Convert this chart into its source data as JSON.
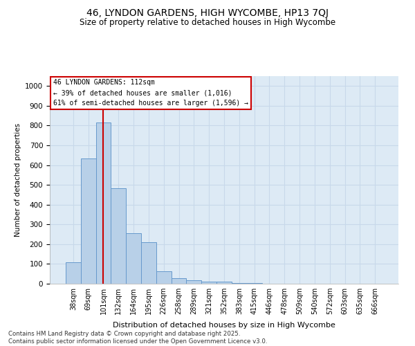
{
  "title1": "46, LYNDON GARDENS, HIGH WYCOMBE, HP13 7QJ",
  "title2": "Size of property relative to detached houses in High Wycombe",
  "xlabel": "Distribution of detached houses by size in High Wycombe",
  "ylabel": "Number of detached properties",
  "categories": [
    "38sqm",
    "69sqm",
    "101sqm",
    "132sqm",
    "164sqm",
    "195sqm",
    "226sqm",
    "258sqm",
    "289sqm",
    "321sqm",
    "352sqm",
    "383sqm",
    "415sqm",
    "446sqm",
    "478sqm",
    "509sqm",
    "540sqm",
    "572sqm",
    "603sqm",
    "635sqm",
    "666sqm"
  ],
  "bar_values": [
    110,
    632,
    815,
    483,
    257,
    211,
    63,
    27,
    17,
    12,
    10,
    5,
    5,
    0,
    0,
    0,
    0,
    0,
    0,
    0,
    0
  ],
  "bar_color": "#b8d0e8",
  "bar_edge_color": "#6699cc",
  "vline_color": "#cc0000",
  "vline_x": 2,
  "annotation_text1": "46 LYNDON GARDENS: 112sqm",
  "annotation_text2": "← 39% of detached houses are smaller (1,016)",
  "annotation_text3": "61% of semi-detached houses are larger (1,596) →",
  "annotation_box_color": "#ffffff",
  "annotation_box_edge": "#cc0000",
  "ylim_max": 1050,
  "yticks": [
    0,
    100,
    200,
    300,
    400,
    500,
    600,
    700,
    800,
    900,
    1000
  ],
  "grid_color": "#c8d8ea",
  "bg_color": "#ddeaf5",
  "footer": "Contains HM Land Registry data © Crown copyright and database right 2025.\nContains public sector information licensed under the Open Government Licence v3.0."
}
